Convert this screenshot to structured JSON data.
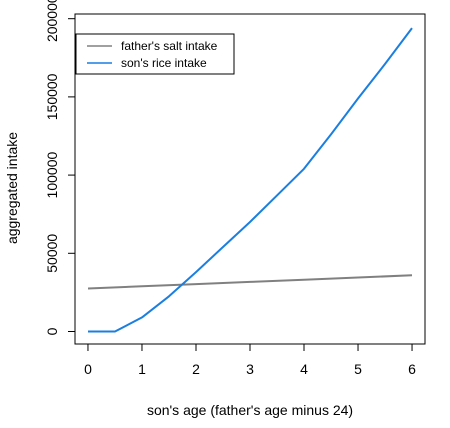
{
  "chart_data": {
    "type": "line",
    "title": "",
    "xlabel": "son's age (father's age minus 24)",
    "ylabel": "aggregated intake",
    "xlim": [
      -0.24,
      6.24
    ],
    "ylim": [
      -8000,
      203000
    ],
    "x_ticks": [
      "0",
      "1",
      "2",
      "3",
      "4",
      "5",
      "6"
    ],
    "y_ticks": [
      "0",
      "50000",
      "100000",
      "150000",
      "200000"
    ],
    "grid": false,
    "legend_position": "top-left",
    "series": [
      {
        "name": "father's salt intake",
        "color": "#808080",
        "x": [
          0,
          1,
          2,
          3,
          4,
          5,
          6
        ],
        "y": [
          27500,
          28900,
          30300,
          31700,
          33100,
          34500,
          35900
        ]
      },
      {
        "name": "son's rice intake",
        "color": "#1a7fe0",
        "x": [
          0,
          0.5,
          1,
          1.5,
          2,
          2.5,
          3,
          3.5,
          4,
          4.5,
          5,
          5.5,
          6
        ],
        "y": [
          0,
          0,
          9000,
          22500,
          38000,
          54000,
          70000,
          87000,
          104000,
          126000,
          149000,
          171000,
          194000
        ]
      }
    ]
  }
}
